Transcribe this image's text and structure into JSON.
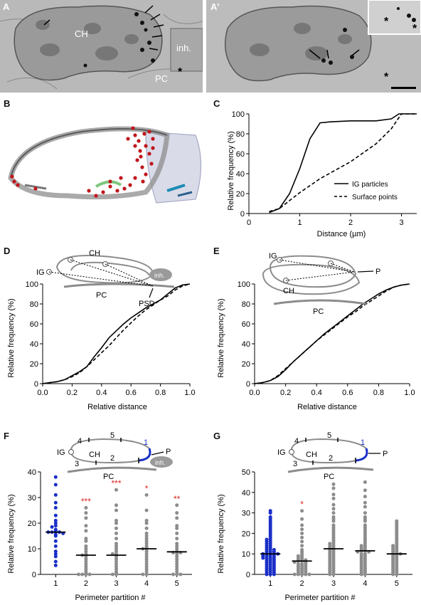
{
  "panel_labels": {
    "A": "A",
    "A2": "A'",
    "B": "B",
    "C": "C",
    "D": "D",
    "E": "E",
    "F": "F",
    "G": "G"
  },
  "em_labels": {
    "ch": "CH",
    "inh": "inh.",
    "pc": "PC",
    "star": "*"
  },
  "common": {
    "ylabel": "Relative frequency (%)",
    "y_ticks": [
      "0",
      "20",
      "40",
      "60",
      "80",
      "100"
    ]
  },
  "panel_c": {
    "xlabel": "Distance (µm)",
    "x_ticks": [
      "0",
      "1",
      "2",
      "3"
    ],
    "legend": {
      "ig": "IG particles",
      "surface": "Surface points"
    }
  },
  "panel_d": {
    "xlabel": "Relative distance",
    "x_ticks": [
      "0.0",
      "0.2",
      "0.4",
      "0.6",
      "0.8",
      "1.0"
    ],
    "schematic": {
      "ig": "IG",
      "ch": "CH",
      "inh": "inh.",
      "pc": "PC",
      "psd": "PSD"
    }
  },
  "panel_e": {
    "xlabel": "Relative distance",
    "x_ticks": [
      "0.0",
      "0.2",
      "0.4",
      "0.6",
      "0.8",
      "1.0"
    ],
    "schematic": {
      "ig": "IG",
      "ch": "CH",
      "p": "P",
      "pc": "PC"
    }
  },
  "panel_f": {
    "xlabel": "Perimeter partition #",
    "y_ticks": [
      "0",
      "10",
      "20",
      "30",
      "40"
    ],
    "categories": [
      "1",
      "2",
      "3",
      "4",
      "5"
    ],
    "stars": [
      "",
      "***",
      "***",
      "*",
      "**"
    ],
    "schematic": {
      "ig": "IG",
      "ch": "CH",
      "pc": "PC",
      "p": "P",
      "inh": "inh.",
      "n1": "1",
      "n2": "2",
      "n3": "3",
      "n4": "4",
      "n5": "5"
    }
  },
  "panel_g": {
    "xlabel": "Perimeter partition #",
    "y_ticks": [
      "0",
      "10",
      "20",
      "30",
      "40",
      "50"
    ],
    "categories": [
      "1",
      "2",
      "3",
      "4",
      "5"
    ],
    "stars": [
      "",
      "*",
      "",
      "",
      ""
    ],
    "schematic": {
      "ig": "IG",
      "ch": "CH",
      "pc": "PC",
      "p": "P",
      "n1": "1",
      "n2": "2",
      "n3": "3",
      "n4": "4",
      "n5": "5"
    }
  },
  "chart_data": [
    {
      "type": "line",
      "panel": "C",
      "xlabel": "Distance (µm)",
      "ylabel": "Relative frequency (%)",
      "xlim": [
        0,
        3.3
      ],
      "ylim": [
        0,
        100
      ],
      "series": [
        {
          "name": "IG particles",
          "style": "solid",
          "x": [
            0.4,
            0.6,
            0.8,
            1.0,
            1.2,
            1.4,
            1.6,
            2.0,
            2.5,
            2.8,
            2.95,
            3.3
          ],
          "y": [
            1,
            5,
            20,
            45,
            75,
            91,
            92,
            93,
            93,
            95,
            100,
            100
          ]
        },
        {
          "name": "Surface points",
          "style": "dashed",
          "x": [
            0.4,
            0.6,
            0.8,
            1.0,
            1.4,
            2.0,
            2.5,
            2.8,
            3.0,
            3.3
          ],
          "y": [
            2,
            5,
            13,
            21,
            35,
            52,
            70,
            85,
            100,
            100
          ]
        }
      ]
    },
    {
      "type": "line",
      "panel": "D",
      "xlabel": "Relative distance",
      "ylabel": "Relative frequency (%)",
      "xlim": [
        0,
        1
      ],
      "ylim": [
        0,
        100
      ],
      "series": [
        {
          "style": "solid",
          "x": [
            0,
            0.05,
            0.1,
            0.15,
            0.2,
            0.25,
            0.3,
            0.35,
            0.4,
            0.45,
            0.5,
            0.55,
            0.6,
            0.65,
            0.7,
            0.75,
            0.8,
            0.85,
            0.9,
            0.95,
            1.0
          ],
          "y": [
            0,
            1,
            2,
            4,
            8,
            12,
            17,
            27,
            36,
            46,
            53,
            60,
            66,
            71,
            76,
            80,
            84,
            90,
            96,
            99,
            100
          ]
        },
        {
          "style": "dashed",
          "x": [
            0,
            0.05,
            0.1,
            0.15,
            0.2,
            0.25,
            0.3,
            0.35,
            0.4,
            0.45,
            0.5,
            0.55,
            0.6,
            0.65,
            0.7,
            0.75,
            0.8,
            0.85,
            0.9,
            0.95,
            1.0
          ],
          "y": [
            0,
            1,
            2,
            4,
            7,
            11,
            17,
            24,
            31,
            38,
            46,
            54,
            61,
            68,
            74,
            79,
            84,
            88,
            94,
            98,
            100
          ]
        }
      ]
    },
    {
      "type": "line",
      "panel": "E",
      "xlabel": "Relative distance",
      "ylabel": "Relative frequency (%)",
      "xlim": [
        0,
        1
      ],
      "ylim": [
        0,
        100
      ],
      "series": [
        {
          "style": "solid",
          "x": [
            0,
            0.05,
            0.1,
            0.15,
            0.2,
            0.25,
            0.3,
            0.35,
            0.4,
            0.45,
            0.5,
            0.55,
            0.6,
            0.65,
            0.7,
            0.75,
            0.8,
            0.85,
            0.9,
            0.95,
            1.0
          ],
          "y": [
            0,
            1,
            3,
            7,
            14,
            22,
            29,
            36,
            43,
            50,
            56,
            62,
            68,
            74,
            80,
            85,
            90,
            94,
            97,
            99,
            100
          ]
        },
        {
          "style": "dashed",
          "x": [
            0,
            0.05,
            0.1,
            0.15,
            0.2,
            0.25,
            0.3,
            0.35,
            0.4,
            0.45,
            0.5,
            0.55,
            0.6,
            0.65,
            0.7,
            0.75,
            0.8,
            0.85,
            0.9,
            0.95,
            1.0
          ],
          "y": [
            0,
            1,
            3,
            8,
            15,
            22,
            29,
            36,
            43,
            49,
            55,
            61,
            67,
            72,
            78,
            83,
            88,
            93,
            97,
            99,
            100
          ]
        }
      ]
    },
    {
      "type": "scatter",
      "panel": "F",
      "xlabel": "Perimeter partition #",
      "ylabel": "Relative frequency (%)",
      "categories": [
        "1",
        "2",
        "3",
        "4",
        "5"
      ],
      "ylim": [
        0,
        40
      ],
      "colors": {
        "partition_1": "#1a2fc8",
        "others": "#8c8c8c",
        "stars": "#e02020"
      },
      "medians": [
        16.5,
        7.5,
        7.5,
        10,
        8.8
      ],
      "values": [
        [
          38,
          35,
          31,
          28,
          26,
          23,
          21,
          20,
          19,
          18.5,
          17.5,
          17,
          16.5,
          16.5,
          16.5,
          16.5,
          16,
          15.5,
          15,
          13,
          11,
          9,
          8,
          7,
          5,
          3.5
        ],
        [
          26,
          24,
          22,
          19,
          17,
          14,
          13,
          11,
          10,
          9,
          8,
          7.5,
          7.5,
          7,
          6,
          5,
          4,
          3,
          2,
          1,
          0.5,
          0,
          0,
          0,
          0
        ],
        [
          33,
          27,
          25,
          21,
          20,
          18,
          16,
          14,
          12,
          11,
          10,
          9,
          8,
          8,
          7.5,
          7,
          6,
          5,
          4,
          3,
          2,
          1,
          0.5,
          0,
          0
        ],
        [
          31,
          25,
          21,
          20,
          18,
          16,
          15,
          14,
          13,
          12,
          11,
          10.5,
          10,
          10,
          9,
          8,
          7,
          6,
          5,
          4,
          3,
          2,
          1,
          0,
          0
        ],
        [
          27,
          24,
          22,
          19,
          18,
          16,
          14,
          12,
          11,
          10,
          9,
          8.5,
          8.5,
          8,
          7,
          6,
          5,
          4,
          3,
          2,
          1,
          0,
          0,
          0
        ]
      ]
    },
    {
      "type": "scatter",
      "panel": "G",
      "xlabel": "Perimeter partition #",
      "ylabel": "Relative frequency (%)",
      "categories": [
        "1",
        "2",
        "3",
        "4",
        "5"
      ],
      "ylim": [
        0,
        50
      ],
      "colors": {
        "partition_1": "#1a2fc8",
        "others": "#8c8c8c",
        "stars": "#e02020"
      },
      "medians": [
        10,
        6.5,
        12.5,
        11.5,
        10
      ],
      "values": [
        [
          31,
          30,
          28,
          27,
          26,
          25,
          24,
          23,
          22,
          21,
          20,
          19,
          18,
          17,
          17,
          16,
          16,
          15,
          15,
          14,
          14,
          13,
          13,
          12,
          12,
          12,
          11,
          11,
          11,
          10,
          10,
          10,
          10,
          10,
          9,
          9,
          9,
          9,
          8,
          8,
          8,
          8,
          7,
          7,
          7,
          6,
          6,
          6,
          5,
          5,
          5,
          4,
          4,
          4,
          3,
          3,
          3,
          2,
          2,
          2,
          1,
          1,
          1,
          0,
          0,
          0
        ],
        [
          31,
          27,
          24,
          22,
          20,
          18,
          16,
          14,
          12,
          11,
          10,
          9,
          9,
          8,
          8,
          7,
          7,
          7,
          6.5,
          6.5,
          6,
          6,
          5,
          5,
          5,
          4,
          4,
          4,
          3,
          3,
          3,
          2,
          2,
          2,
          1,
          1,
          1,
          0,
          0,
          0,
          0,
          0
        ],
        [
          44,
          42,
          39,
          37,
          34,
          32,
          30,
          28,
          27,
          26,
          24,
          23,
          22,
          21,
          20,
          19,
          18,
          17,
          16,
          15,
          15,
          14,
          14,
          13,
          13,
          12.5,
          12.5,
          12,
          12,
          11,
          11,
          10,
          10,
          9,
          9,
          8,
          8,
          7,
          7,
          6,
          6,
          5,
          5,
          4,
          4,
          3,
          3,
          2,
          2,
          1,
          1,
          0,
          0
        ],
        [
          45,
          41,
          38,
          35,
          33,
          30,
          28,
          27,
          26,
          24,
          23,
          22,
          21,
          20,
          19,
          18,
          17,
          16,
          15,
          14,
          14,
          13,
          13,
          12,
          12,
          11.5,
          11.5,
          11,
          11,
          10,
          10,
          9,
          9,
          8,
          8,
          7,
          7,
          6,
          6,
          5,
          5,
          4,
          4,
          3,
          3,
          2,
          2,
          1,
          1,
          0,
          0
        ],
        [
          26,
          25,
          24,
          23,
          22,
          21,
          20,
          19,
          18,
          17,
          16,
          15,
          14,
          14,
          13,
          13,
          12,
          12,
          11,
          11,
          10,
          10,
          10,
          9,
          9,
          8,
          8,
          7,
          7,
          6,
          6,
          5,
          5,
          4,
          4,
          3,
          3,
          2,
          2,
          1,
          1,
          0,
          0
        ]
      ]
    }
  ]
}
